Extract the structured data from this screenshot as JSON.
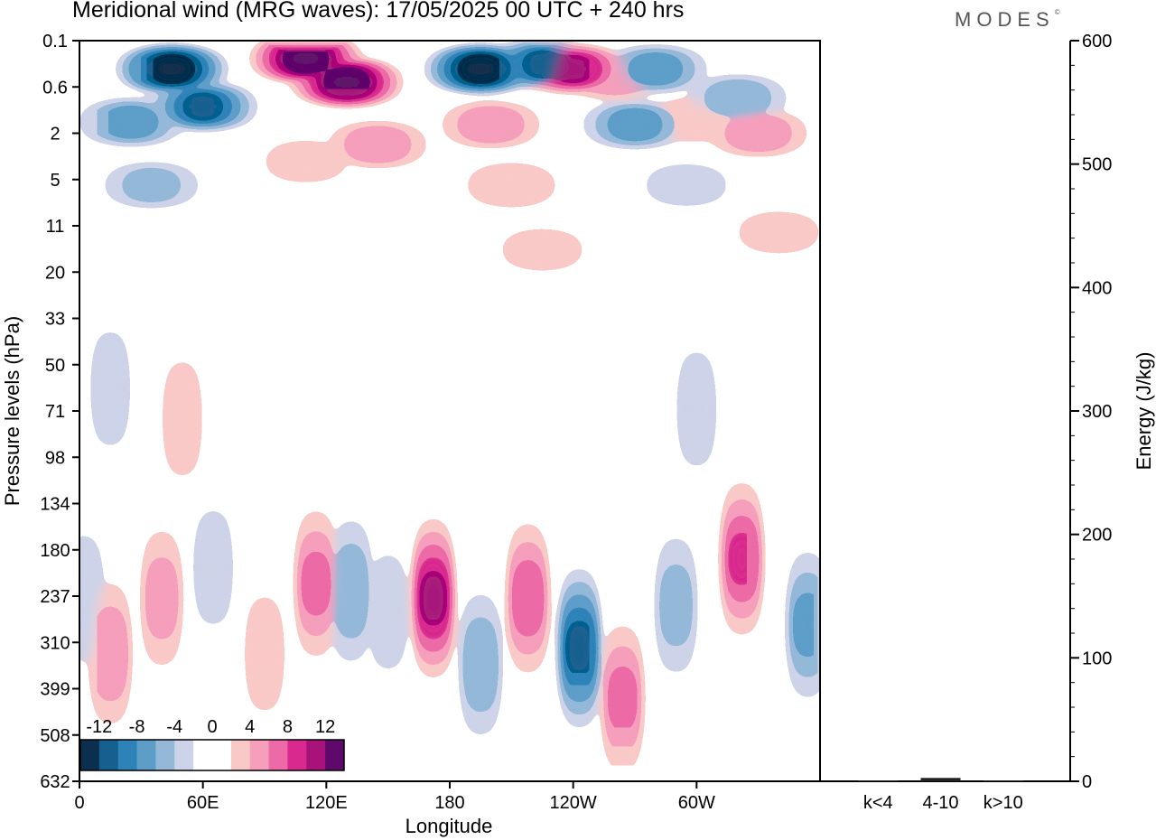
{
  "title": "Meridional wind (MRG waves):  17/05/2025  00 UTC  + 240 hrs",
  "brand": "MODES",
  "brand_mark": "©",
  "chart_data": [
    {
      "type": "heatmap",
      "title": "Meridional wind (MRG waves):  17/05/2025  00 UTC  + 240 hrs",
      "xlabel": "Longitude",
      "ylabel": "Pressure levels (hPa)",
      "x_ticks": [
        "0",
        "60E",
        "120E",
        "180",
        "120W",
        "60W"
      ],
      "y_ticks": [
        "0.1",
        "0.6",
        "2",
        "5",
        "11",
        "20",
        "33",
        "50",
        "71",
        "98",
        "134",
        "180",
        "237",
        "310",
        "399",
        "508",
        "632"
      ],
      "colorbar": {
        "labels": [
          "-12",
          "-8",
          "-4",
          "0",
          "4",
          "8",
          "12"
        ],
        "colors": [
          "#0c2f4e",
          "#15608f",
          "#2d83b8",
          "#5d9ec9",
          "#94b8d8",
          "#cdd3e8",
          "#ffffff",
          "#ffffff",
          "#f9c9c7",
          "#f59fbc",
          "#ec6aa6",
          "#d9298f",
          "#a7137a",
          "#5f0a6a"
        ]
      },
      "blobs": [
        {
          "lon": 45,
          "lev": 0.3,
          "v": -16
        },
        {
          "lon": 60,
          "lev": 1.0,
          "v": -12
        },
        {
          "lon": 25,
          "lev": 1.5,
          "v": -8
        },
        {
          "lon": 35,
          "lev": 5.5,
          "v": -5
        },
        {
          "lon": 110,
          "lev": 0.2,
          "v": 16
        },
        {
          "lon": 130,
          "lev": 0.5,
          "v": 16
        },
        {
          "lon": 145,
          "lev": 2.5,
          "v": 6
        },
        {
          "lon": 110,
          "lev": 3.5,
          "v": 3
        },
        {
          "lon": 195,
          "lev": 0.3,
          "v": -16
        },
        {
          "lon": 225,
          "lev": 0.25,
          "v": -12
        },
        {
          "lon": 240,
          "lev": 0.3,
          "v": 12
        },
        {
          "lon": 260,
          "lev": 0.4,
          "v": 6
        },
        {
          "lon": 200,
          "lev": 1.6,
          "v": 6
        },
        {
          "lon": 210,
          "lev": 5.5,
          "v": 4
        },
        {
          "lon": 280,
          "lev": 0.3,
          "v": -8
        },
        {
          "lon": 320,
          "lev": 0.8,
          "v": -6
        },
        {
          "lon": 270,
          "lev": 1.6,
          "v": -8
        },
        {
          "lon": 300,
          "lev": 1.4,
          "v": 4
        },
        {
          "lon": 330,
          "lev": 2.0,
          "v": 6
        },
        {
          "lon": 295,
          "lev": 5.5,
          "v": -3
        },
        {
          "lon": 225,
          "lev": 15,
          "v": 3
        },
        {
          "lon": 340,
          "lev": 12,
          "v": 3
        },
        {
          "lon": 15,
          "lev": 60,
          "v": -3
        },
        {
          "lon": 50,
          "lev": 75,
          "v": 3
        },
        {
          "lon": 300,
          "lev": 70,
          "v": -3
        },
        {
          "lon": 15,
          "lev": 330,
          "v": 6
        },
        {
          "lon": 40,
          "lev": 240,
          "v": 5
        },
        {
          "lon": 65,
          "lev": 200,
          "v": -3
        },
        {
          "lon": 90,
          "lev": 330,
          "v": 3
        },
        {
          "lon": 115,
          "lev": 220,
          "v": 7
        },
        {
          "lon": 132,
          "lev": 230,
          "v": -6
        },
        {
          "lon": 150,
          "lev": 260,
          "v": -3
        },
        {
          "lon": 172,
          "lev": 240,
          "v": 12
        },
        {
          "lon": 195,
          "lev": 350,
          "v": -6
        },
        {
          "lon": 218,
          "lev": 240,
          "v": 8
        },
        {
          "lon": 243,
          "lev": 320,
          "v": -12
        },
        {
          "lon": 264,
          "lev": 420,
          "v": 7
        },
        {
          "lon": 290,
          "lev": 250,
          "v": -5
        },
        {
          "lon": 322,
          "lev": 190,
          "v": 9
        },
        {
          "lon": 354,
          "lev": 280,
          "v": -7
        },
        {
          "lon": 2,
          "lev": 240,
          "v": -4
        },
        {
          "lon": 180,
          "lev": 20,
          "v": 0
        }
      ]
    },
    {
      "type": "bar",
      "ylabel": "Energy (J/kg)",
      "categories": [
        "k<4",
        "4-10",
        "k>10"
      ],
      "values": [
        0,
        2,
        0
      ],
      "ylim": [
        0,
        600
      ],
      "y_ticks": [
        "0",
        "100",
        "200",
        "300",
        "400",
        "500",
        "600"
      ]
    }
  ]
}
